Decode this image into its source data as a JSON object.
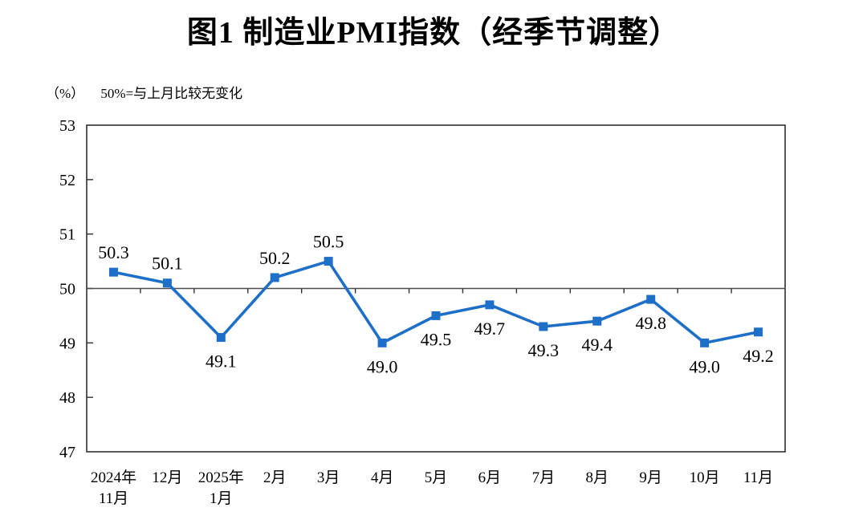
{
  "chart_data": {
    "type": "line",
    "title": "图1  制造业PMI指数（经季节调整）",
    "unit": "（%）",
    "annotation": "50%=与上月比较无变化",
    "categories": [
      [
        "2024年",
        "11月"
      ],
      [
        "12月"
      ],
      [
        "2025年",
        "1月"
      ],
      [
        "2月"
      ],
      [
        "3月"
      ],
      [
        "4月"
      ],
      [
        "5月"
      ],
      [
        "6月"
      ],
      [
        "7月"
      ],
      [
        "8月"
      ],
      [
        "9月"
      ],
      [
        "10月"
      ],
      [
        "11月"
      ]
    ],
    "series": [
      {
        "name": "制造业PMI指数",
        "values": [
          50.3,
          50.1,
          49.1,
          50.2,
          50.5,
          49.0,
          49.5,
          49.7,
          49.3,
          49.4,
          49.8,
          49.0,
          49.2
        ],
        "labels": [
          "50.3",
          "50.1",
          "49.1",
          "50.2",
          "50.5",
          "49.0",
          "49.5",
          "49.7",
          "49.3",
          "49.4",
          "49.8",
          "49.0",
          "49.2"
        ]
      }
    ],
    "ylim": [
      47,
      53
    ],
    "y_ticks": [
      47,
      48,
      49,
      50,
      51,
      52,
      53
    ],
    "reference_line": 50,
    "grid": false,
    "legend": "none",
    "marker": "square",
    "colors": {
      "line": "#1e6fc8",
      "axis": "#2f2f2f",
      "reference": "#4d4d4d",
      "text": "#000000"
    }
  }
}
